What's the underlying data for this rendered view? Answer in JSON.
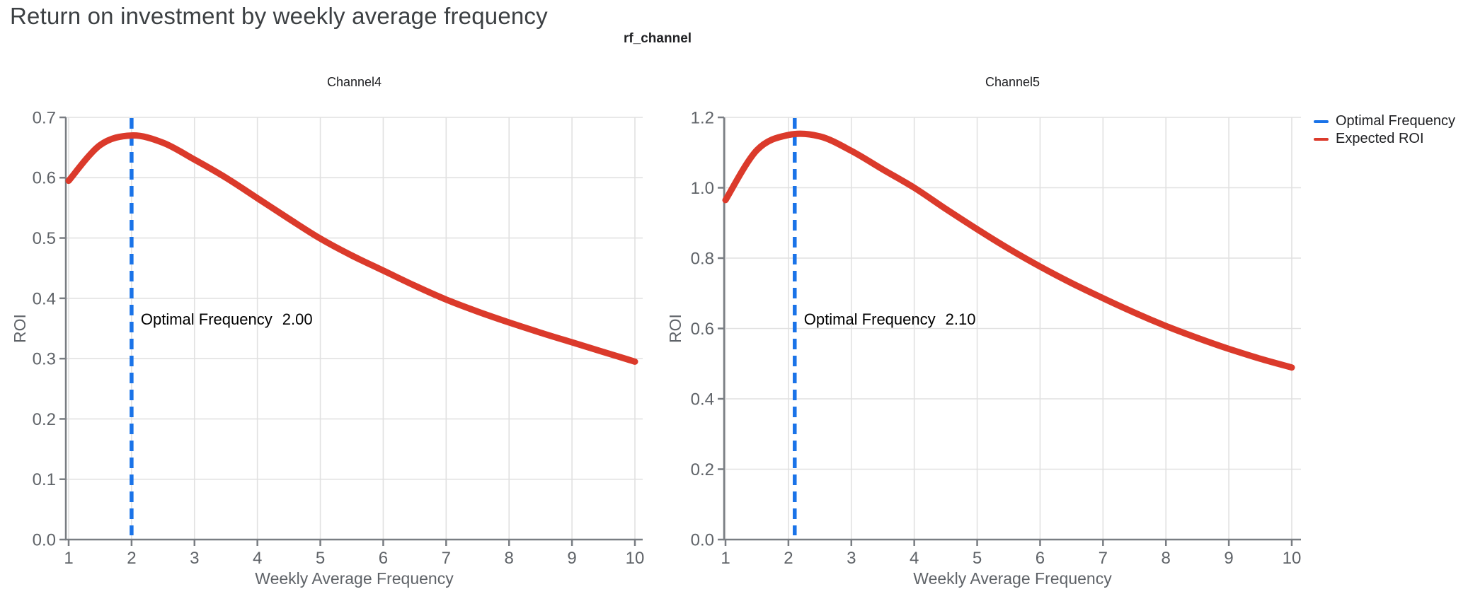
{
  "page": {
    "title": "Return on investment by weekly average frequency",
    "suptitle": "rf_channel"
  },
  "style": {
    "accent_blue": "#1A73E8",
    "accent_red": "#DB3A2B",
    "grid_color": "#E1E1E1",
    "axis_color": "#797D82",
    "tick_label_color": "#5F6368",
    "title_color": "#3C4043",
    "text_color": "#202124",
    "annotation_color": "#000000",
    "background": "#FFFFFF"
  },
  "legend": {
    "position": "top-right",
    "items": [
      {
        "label": "Optimal Frequency",
        "color": "#1A73E8",
        "icon": "line-swatch"
      },
      {
        "label": "Expected ROI",
        "color": "#DB3A2B",
        "icon": "line-swatch"
      }
    ]
  },
  "chart_data": [
    {
      "type": "line",
      "title": "Channel4",
      "xlabel": "Weekly Average Frequency",
      "ylabel": "ROI",
      "xlim": [
        1,
        10
      ],
      "ylim": [
        0.0,
        0.7
      ],
      "grid": true,
      "x_ticks": [
        1,
        2,
        3,
        4,
        5,
        6,
        7,
        8,
        9,
        10
      ],
      "x_tick_labels": [
        "1",
        "2",
        "3",
        "4",
        "5",
        "6",
        "7",
        "8",
        "9",
        "10"
      ],
      "y_ticks": [
        0.0,
        0.1,
        0.2,
        0.3,
        0.4,
        0.5,
        0.6,
        0.7
      ],
      "y_tick_labels": [
        "0.0",
        "0.1",
        "0.2",
        "0.3",
        "0.4",
        "0.5",
        "0.6",
        "0.7"
      ],
      "optimal_frequency": 2.0,
      "annotation": {
        "label": "Optimal Frequency",
        "value": "2.00"
      },
      "series": [
        {
          "name": "Expected ROI",
          "x": [
            1,
            1.5,
            2,
            2.5,
            3,
            3.5,
            4,
            4.5,
            5,
            5.5,
            6,
            6.5,
            7,
            7.5,
            8,
            8.5,
            9,
            9.5,
            10
          ],
          "y": [
            0.595,
            0.654,
            0.67,
            0.658,
            0.63,
            0.6,
            0.566,
            0.532,
            0.499,
            0.471,
            0.446,
            0.421,
            0.398,
            0.378,
            0.36,
            0.343,
            0.327,
            0.311,
            0.295
          ]
        }
      ]
    },
    {
      "type": "line",
      "title": "Channel5",
      "xlabel": "Weekly Average Frequency",
      "ylabel": "ROI",
      "xlim": [
        1,
        10
      ],
      "ylim": [
        0.0,
        1.2
      ],
      "grid": true,
      "x_ticks": [
        1,
        2,
        3,
        4,
        5,
        6,
        7,
        8,
        9,
        10
      ],
      "x_tick_labels": [
        "1",
        "2",
        "3",
        "4",
        "5",
        "6",
        "7",
        "8",
        "9",
        "10"
      ],
      "y_ticks": [
        0.0,
        0.2,
        0.4,
        0.6,
        0.8,
        1.0,
        1.2
      ],
      "y_tick_labels": [
        "0.0",
        "0.2",
        "0.4",
        "0.6",
        "0.8",
        "1.0",
        "1.2"
      ],
      "optimal_frequency": 2.1,
      "annotation": {
        "label": "Optimal Frequency",
        "value": "2.10"
      },
      "series": [
        {
          "name": "Expected ROI",
          "x": [
            1,
            1.5,
            2,
            2.5,
            3,
            3.5,
            4,
            4.5,
            5,
            5.5,
            6,
            6.5,
            7,
            7.5,
            8,
            8.5,
            9,
            9.5,
            10
          ],
          "y": [
            0.965,
            1.107,
            1.15,
            1.146,
            1.105,
            1.052,
            1.0,
            0.94,
            0.882,
            0.827,
            0.776,
            0.729,
            0.686,
            0.645,
            0.607,
            0.573,
            0.542,
            0.514,
            0.489
          ]
        }
      ]
    }
  ]
}
